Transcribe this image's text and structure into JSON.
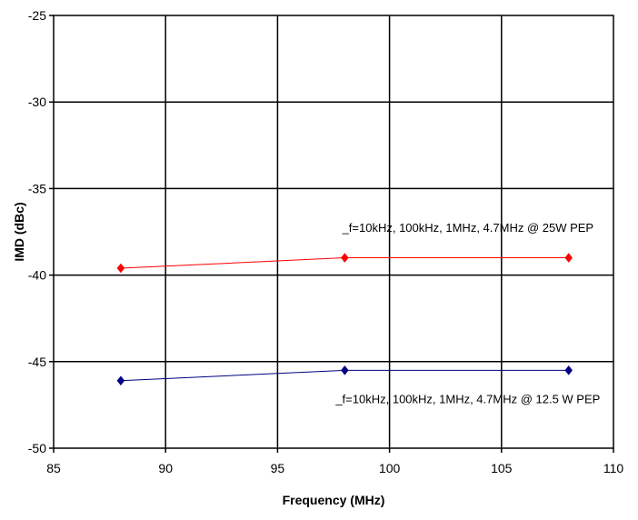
{
  "chart_data": {
    "type": "line",
    "title": "",
    "xlabel": "Frequency (MHz)",
    "ylabel": "IMD  (dBc)",
    "xlim": [
      85,
      110
    ],
    "ylim": [
      -50,
      -25
    ],
    "xticks": [
      85,
      90,
      95,
      100,
      105,
      110
    ],
    "yticks": [
      -25,
      -30,
      -35,
      -40,
      -45,
      -50
    ],
    "grid": true,
    "legend": "none",
    "series": [
      {
        "color": "#ff0000",
        "marker": "diamond",
        "x": [
          88,
          98,
          108
        ],
        "y": [
          -39.6,
          -39.0,
          -39.0
        ]
      },
      {
        "color": "#000080",
        "marker": "diamond",
        "x": [
          88,
          98,
          108
        ],
        "y": [
          -46.1,
          -45.5,
          -45.5
        ]
      }
    ],
    "annotations": [
      {
        "text": "_f=10kHz,   100kHz,   1MHz,   4.7MHz @ 25W  PEP",
        "x": 103.5,
        "y": -37.5,
        "color": "#000000"
      },
      {
        "text": "_f=10kHz,   100kHz,   1MHz,   4.7MHz @ 12.5  W  PEP",
        "x": 103.5,
        "y": -47.4,
        "color": "#000000"
      }
    ]
  }
}
